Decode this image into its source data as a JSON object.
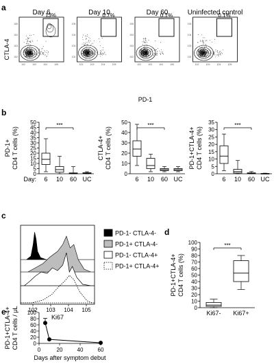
{
  "panel_a": {
    "letter": "a",
    "y_label": "CTLA-4",
    "x_label": "PD-1",
    "plots": [
      {
        "title": "Day 6",
        "gate_pct": "13%"
      },
      {
        "title": "Day 10",
        "gate_pct": "0.7%"
      },
      {
        "title": "Day 60",
        "gate_pct": "0.1%"
      },
      {
        "title": "Uninfected control",
        "gate_pct": "0.1%"
      }
    ]
  },
  "chart_data": [
    {
      "panel": "b",
      "type": "box",
      "ylabel": "PD-1+ CD4 T cells (%)",
      "ylabel_lines": [
        "PD-1+",
        "CD4 T cells (%)"
      ],
      "categories": [
        "6",
        "10",
        "60",
        "UC"
      ],
      "x_prefix": "Day:",
      "ylim": [
        0,
        50
      ],
      "yticks": [
        0,
        5,
        10,
        15,
        20,
        25,
        30,
        35,
        40,
        45,
        50
      ],
      "boxes": [
        {
          "min": 2,
          "q1": 9,
          "median": 14,
          "q3": 20,
          "max": 34
        },
        {
          "min": 0,
          "q1": 1.5,
          "median": 4,
          "q3": 7,
          "max": 17
        },
        {
          "min": 0,
          "q1": 0.1,
          "median": 0.4,
          "q3": 0.8,
          "max": 7
        },
        {
          "min": 0,
          "q1": 0.3,
          "median": 0.6,
          "q3": 1,
          "max": 2
        }
      ],
      "significance": {
        "label": "***",
        "from": "6",
        "to": "60"
      }
    },
    {
      "panel": "b",
      "type": "box",
      "ylabel": "CTLA-4+ CD4 T cells (%)",
      "ylabel_lines": [
        "CTLA-4+",
        "CD4 T cells (%)"
      ],
      "categories": [
        "6",
        "10",
        "60",
        "UC"
      ],
      "x_prefix": "Day:",
      "ylim": [
        0,
        50
      ],
      "yticks": [
        0,
        10,
        20,
        30,
        40,
        50
      ],
      "boxes": [
        {
          "min": 8,
          "q1": 17,
          "median": 24,
          "q3": 32,
          "max": 48
        },
        {
          "min": 2,
          "q1": 5,
          "median": 8,
          "q3": 15,
          "max": 19
        },
        {
          "min": 2,
          "q1": 3,
          "median": 4,
          "q3": 5,
          "max": 7
        },
        {
          "min": 2,
          "q1": 3,
          "median": 4,
          "q3": 5,
          "max": 7
        }
      ],
      "significance": {
        "label": "***",
        "from": "6",
        "to": "60"
      }
    },
    {
      "panel": "b",
      "type": "box",
      "ylabel": "PD-1+CTLA-4+ CD4 T cells (%)",
      "ylabel_lines": [
        "PD-1+CTLA-4+",
        "CD4 T cells (%)"
      ],
      "categories": [
        "6",
        "10",
        "60",
        "UC"
      ],
      "ylim": [
        0,
        35
      ],
      "yticks": [
        0,
        5,
        10,
        15,
        20,
        25,
        30,
        35
      ],
      "boxes": [
        {
          "min": 2,
          "q1": 7,
          "median": 12,
          "q3": 19,
          "max": 27
        },
        {
          "min": 0,
          "q1": 0.5,
          "median": 1.5,
          "q3": 3,
          "max": 9
        },
        {
          "min": 0,
          "q1": 0.1,
          "median": 0.3,
          "q3": 0.6,
          "max": 1.5
        },
        {
          "min": 0,
          "q1": 0.05,
          "median": 0.1,
          "q3": 0.2,
          "max": 0.4
        }
      ],
      "significance": {
        "label": "***",
        "from": "6",
        "to": "60"
      }
    },
    {
      "panel": "d",
      "type": "box",
      "ylabel": "PD-1+CTLA-4+ CD4 T cells (%)",
      "ylabel_lines": [
        "PD-1+CTLA-4+",
        "CD4 T cells (%)"
      ],
      "categories": [
        "Ki67-",
        "Ki67+"
      ],
      "ylim": [
        0,
        100
      ],
      "yticks": [
        0,
        10,
        20,
        30,
        40,
        50,
        60,
        70,
        80,
        90,
        100
      ],
      "boxes": [
        {
          "min": 0,
          "q1": 2,
          "median": 4,
          "q3": 8,
          "max": 13
        },
        {
          "min": 28,
          "q1": 40,
          "median": 53,
          "q3": 72,
          "max": 80
        }
      ],
      "significance": {
        "label": "***",
        "from": "Ki67-",
        "to": "Ki67+"
      }
    },
    {
      "panel": "e",
      "type": "line",
      "xlabel": "Days after symptom debut",
      "ylabel": "PD-1+CTLA-4+ CD4 T cells / μL",
      "ylabel_lines": [
        "PD-1+CTLA-4+",
        "CD4 T cells / μL"
      ],
      "xlim": [
        0,
        60
      ],
      "ylim": [
        0,
        100
      ],
      "xticks": [
        0,
        20,
        40,
        60
      ],
      "yticks": [
        0,
        20,
        40,
        60,
        80,
        100
      ],
      "x": [
        6,
        10,
        60
      ],
      "y": [
        66,
        13,
        2
      ],
      "err_upper": [
        81,
        13,
        2
      ]
    },
    {
      "panel": "c",
      "type": "histogram",
      "xlabel": "Ki67",
      "xtick_exponents": [
        "2",
        "3",
        "4",
        "5"
      ],
      "legend": [
        {
          "label": "PD-1- CTLA-4-",
          "fill": "#000000",
          "line": "solid"
        },
        {
          "label": "PD-1+ CTLA-4-",
          "fill": "#bdbdbd",
          "line": "solid"
        },
        {
          "label": "PD-1- CTLA-4+",
          "fill": "#ffffff",
          "line": "solid"
        },
        {
          "label": "PD-1+ CTLA-4+",
          "fill": "#ffffff",
          "line": "dotted"
        }
      ]
    }
  ],
  "letters": {
    "b": "b",
    "c": "c",
    "d": "d",
    "e": "e"
  },
  "tick_base": "10"
}
